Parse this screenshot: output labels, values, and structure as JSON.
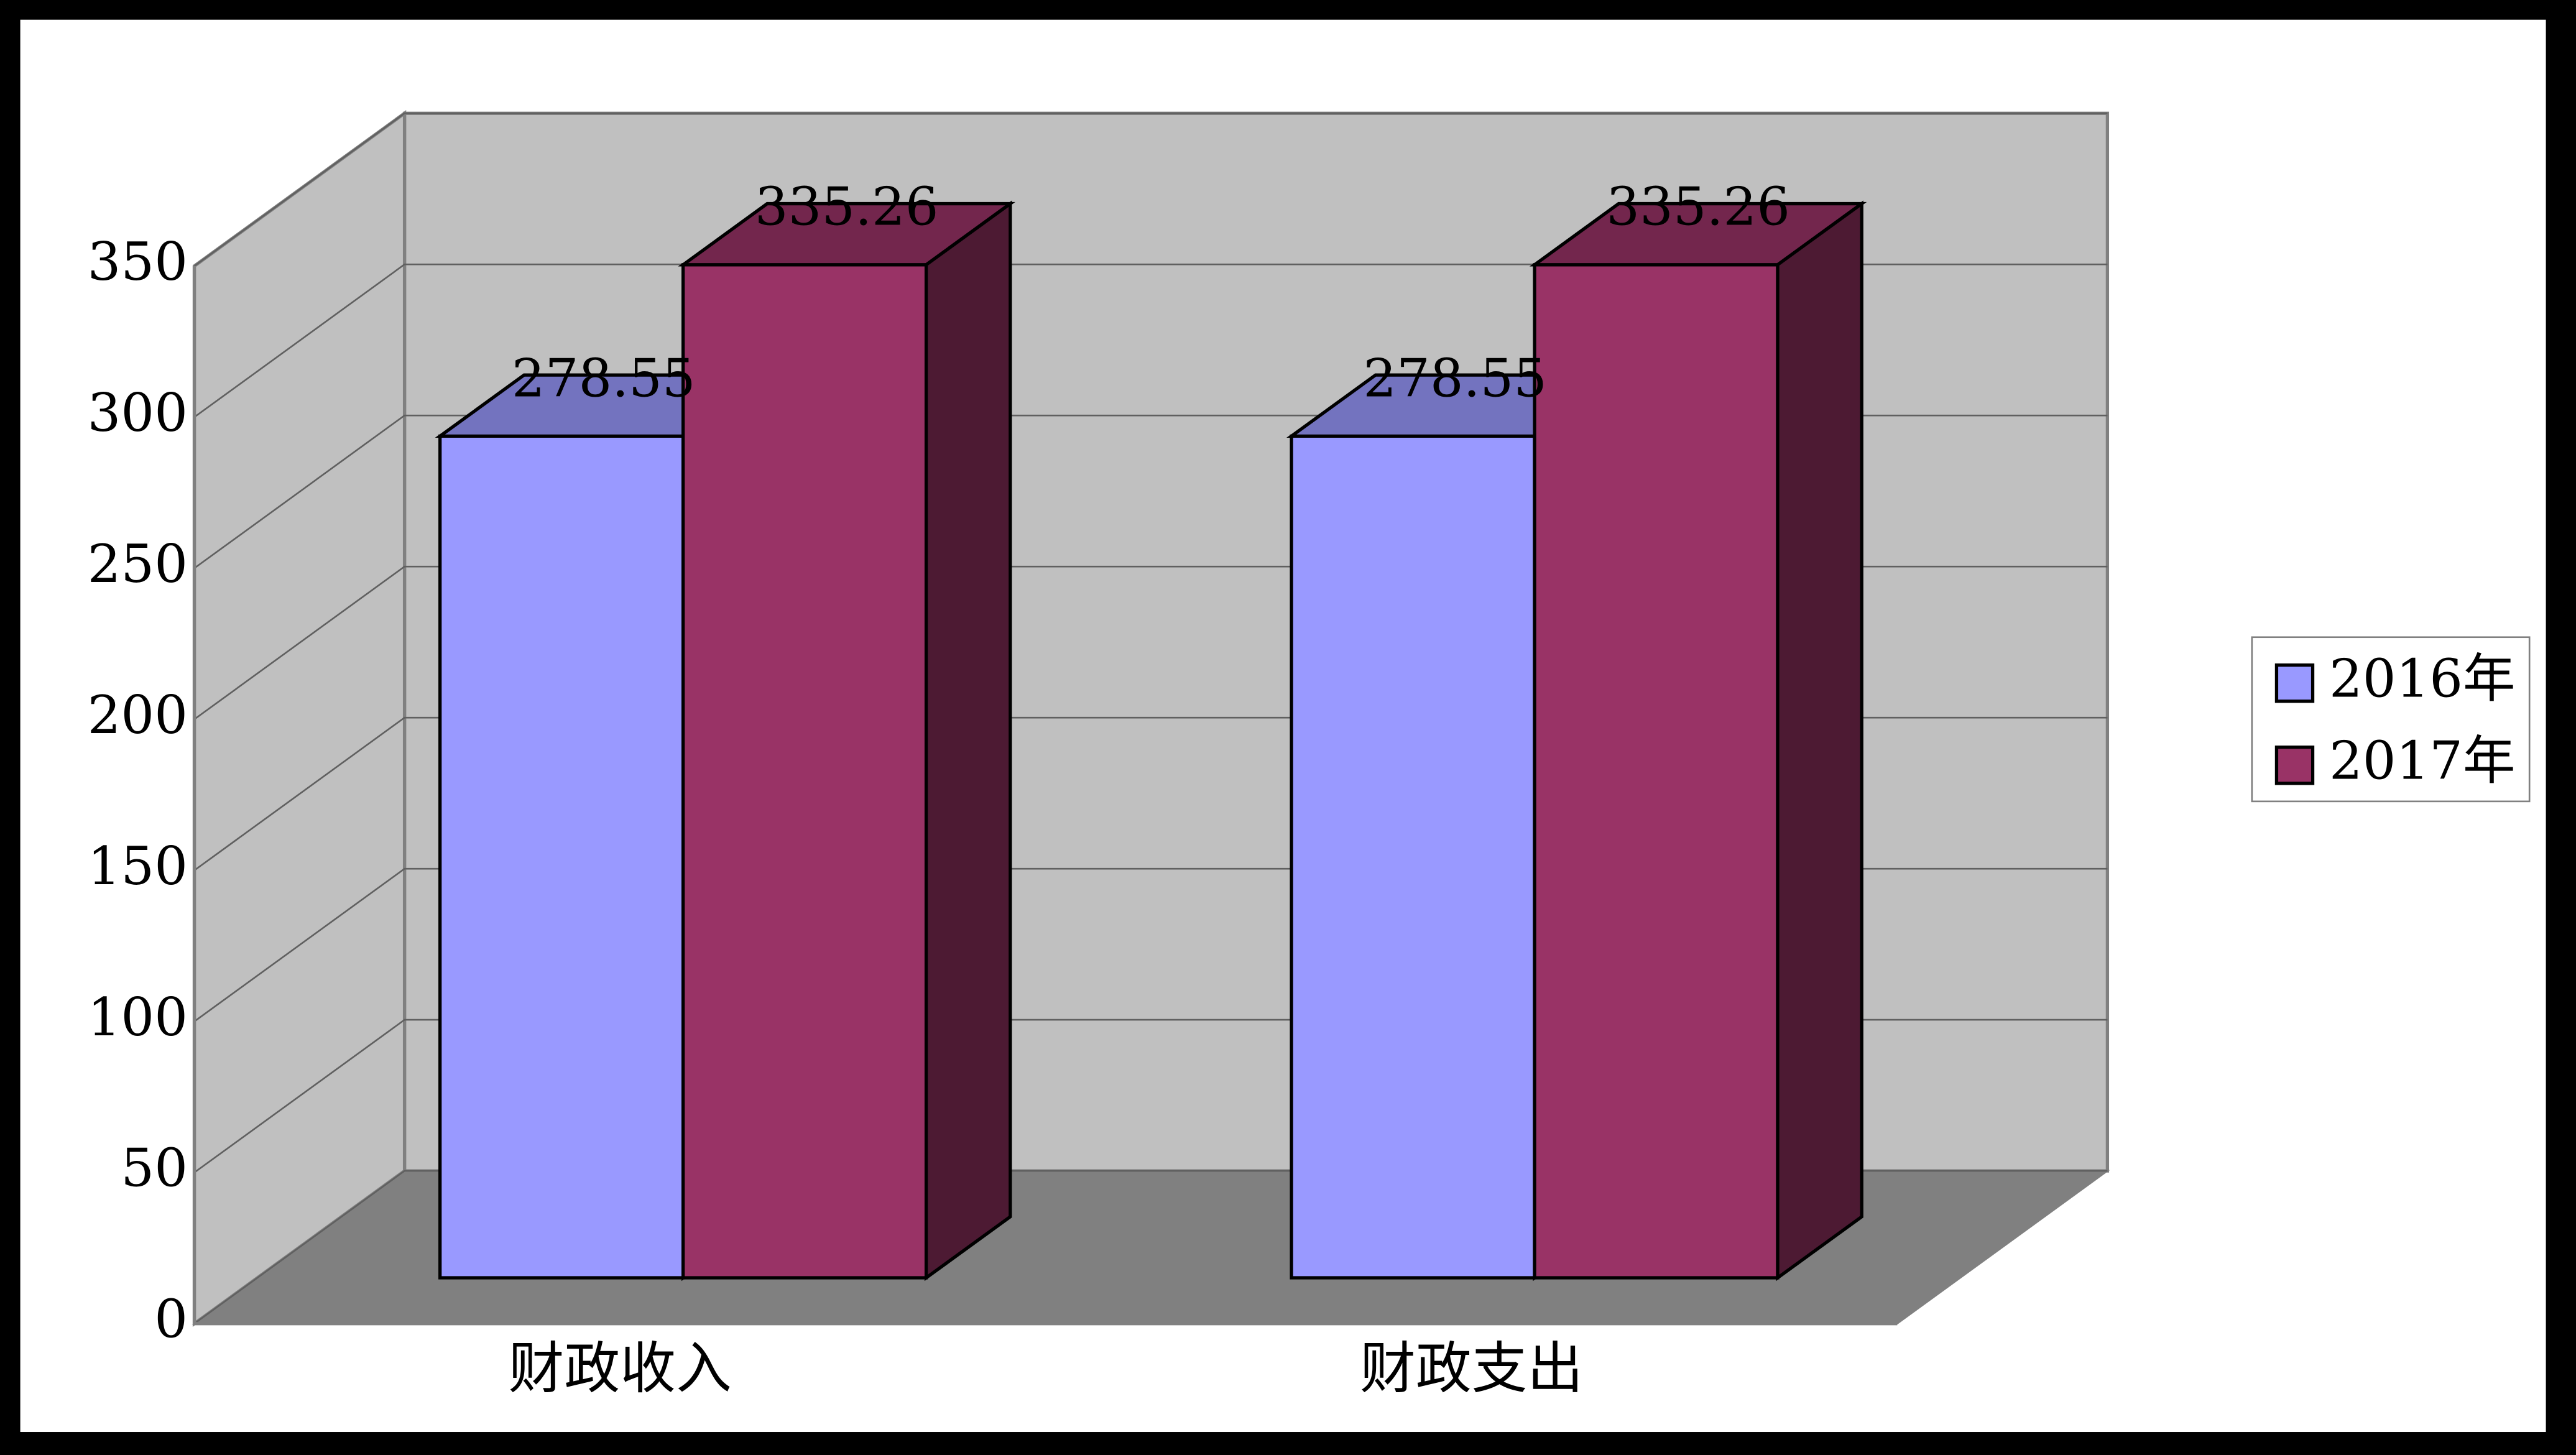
{
  "chart_data": {
    "type": "bar3d",
    "categories": [
      "财政收入",
      "财政支出"
    ],
    "series": [
      {
        "name": "2016年",
        "color": "#9999ff",
        "values": [
          278.55,
          278.55
        ]
      },
      {
        "name": "2017年",
        "color": "#993366",
        "values": [
          335.26,
          335.26
        ]
      }
    ],
    "ylim": [
      0,
      350
    ],
    "yticks": [
      0,
      50,
      100,
      150,
      200,
      250,
      300,
      350
    ],
    "grid": true,
    "legend": "right"
  }
}
